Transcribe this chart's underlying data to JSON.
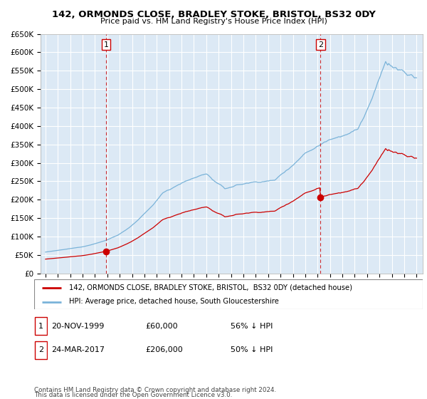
{
  "title": "142, ORMONDS CLOSE, BRADLEY STOKE, BRISTOL, BS32 0DY",
  "subtitle": "Price paid vs. HM Land Registry's House Price Index (HPI)",
  "ylim": [
    0,
    650000
  ],
  "yticks": [
    0,
    50000,
    100000,
    150000,
    200000,
    250000,
    300000,
    350000,
    400000,
    450000,
    500000,
    550000,
    600000,
    650000
  ],
  "ytick_labels": [
    "£0",
    "£50K",
    "£100K",
    "£150K",
    "£200K",
    "£250K",
    "£300K",
    "£350K",
    "£400K",
    "£450K",
    "£500K",
    "£550K",
    "£600K",
    "£650K"
  ],
  "hpi_color": "#7ab3d9",
  "price_color": "#cc0000",
  "background_color": "#dce9f5",
  "marker_color": "#cc0000",
  "vline_color": "#cc0000",
  "sale1_year": 1999.89,
  "sale1_price": 60000,
  "sale2_year": 2017.23,
  "sale2_price": 206000,
  "legend_line1": "142, ORMONDS CLOSE, BRADLEY STOKE, BRISTOL,  BS32 0DY (detached house)",
  "legend_line2": "HPI: Average price, detached house, South Gloucestershire",
  "table_row1": [
    "1",
    "20-NOV-1999",
    "£60,000",
    "56% ↓ HPI"
  ],
  "table_row2": [
    "2",
    "24-MAR-2017",
    "£206,000",
    "50% ↓ HPI"
  ],
  "footnote1": "Contains HM Land Registry data © Crown copyright and database right 2024.",
  "footnote2": "This data is licensed under the Open Government Licence v3.0.",
  "grid_color": "#ffffff",
  "xlim_min": 1994.6,
  "xlim_max": 2025.5,
  "xticks": [
    1995,
    1996,
    1997,
    1998,
    1999,
    2000,
    2001,
    2002,
    2003,
    2004,
    2005,
    2006,
    2007,
    2008,
    2009,
    2010,
    2011,
    2012,
    2013,
    2014,
    2015,
    2016,
    2017,
    2018,
    2019,
    2020,
    2021,
    2022,
    2023,
    2024,
    2025
  ]
}
